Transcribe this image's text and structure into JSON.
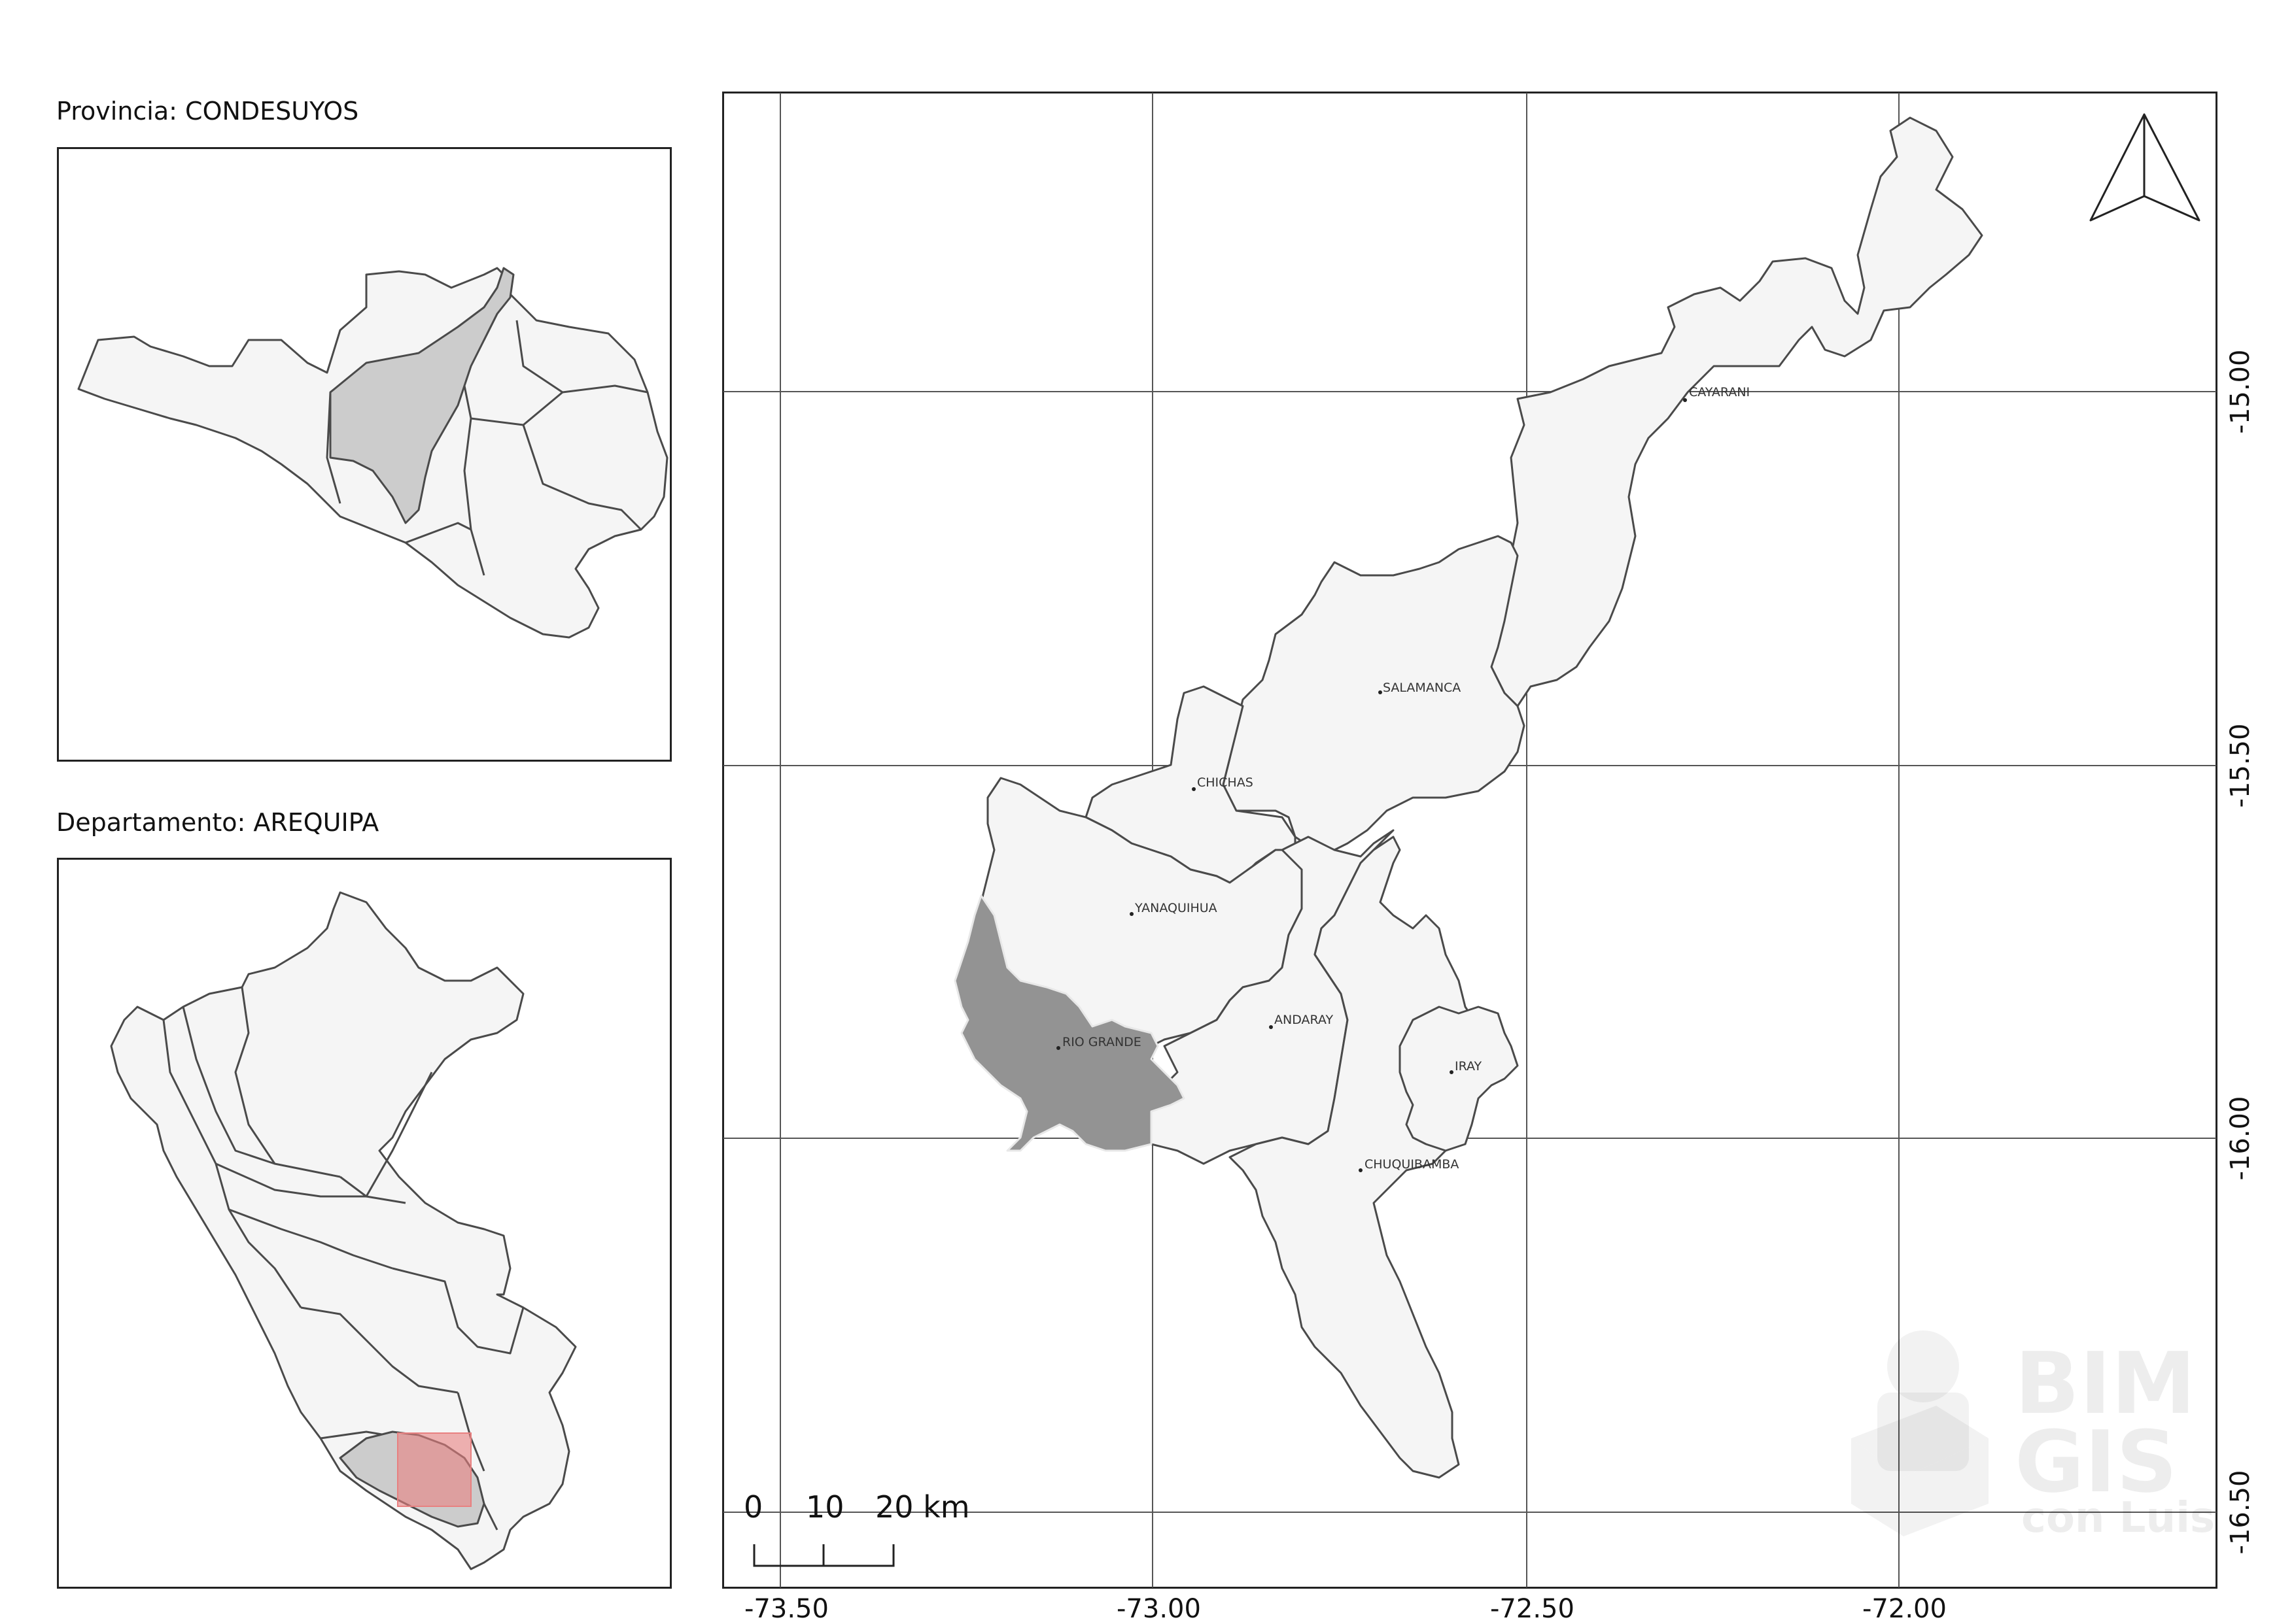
{
  "inset_province": {
    "title": "Provincia: CONDESUYOS"
  },
  "inset_department": {
    "title": "Departamento: AREQUIPA"
  },
  "main_map": {
    "x_ticks": [
      "-73.50",
      "-73.00",
      "-72.50",
      "-72.00"
    ],
    "y_ticks": [
      "-15.00",
      "-15.50",
      "-16.00",
      "-16.50"
    ],
    "districts": [
      {
        "name": "CAYARANI"
      },
      {
        "name": "SALAMANCA"
      },
      {
        "name": "CHICHAS"
      },
      {
        "name": "YANAQUIHUA"
      },
      {
        "name": "ANDARAY"
      },
      {
        "name": "RIO GRANDE",
        "highlighted": true
      },
      {
        "name": "IRAY"
      },
      {
        "name": "CHUQUIBAMBA"
      }
    ],
    "scale_bar": {
      "labels": [
        "0",
        "10",
        "20 km"
      ]
    },
    "north_arrow_icon": "north-arrow-icon",
    "colors": {
      "district_fill": "#f5f5f5",
      "highlight_fill": "#939393",
      "inset_highlight": "#cccccc",
      "extent_box": "#e88080",
      "outline": "#4a4a4a"
    }
  },
  "watermark": {
    "line1": "BIM",
    "line2": "GIS",
    "line3": "con Luis"
  }
}
